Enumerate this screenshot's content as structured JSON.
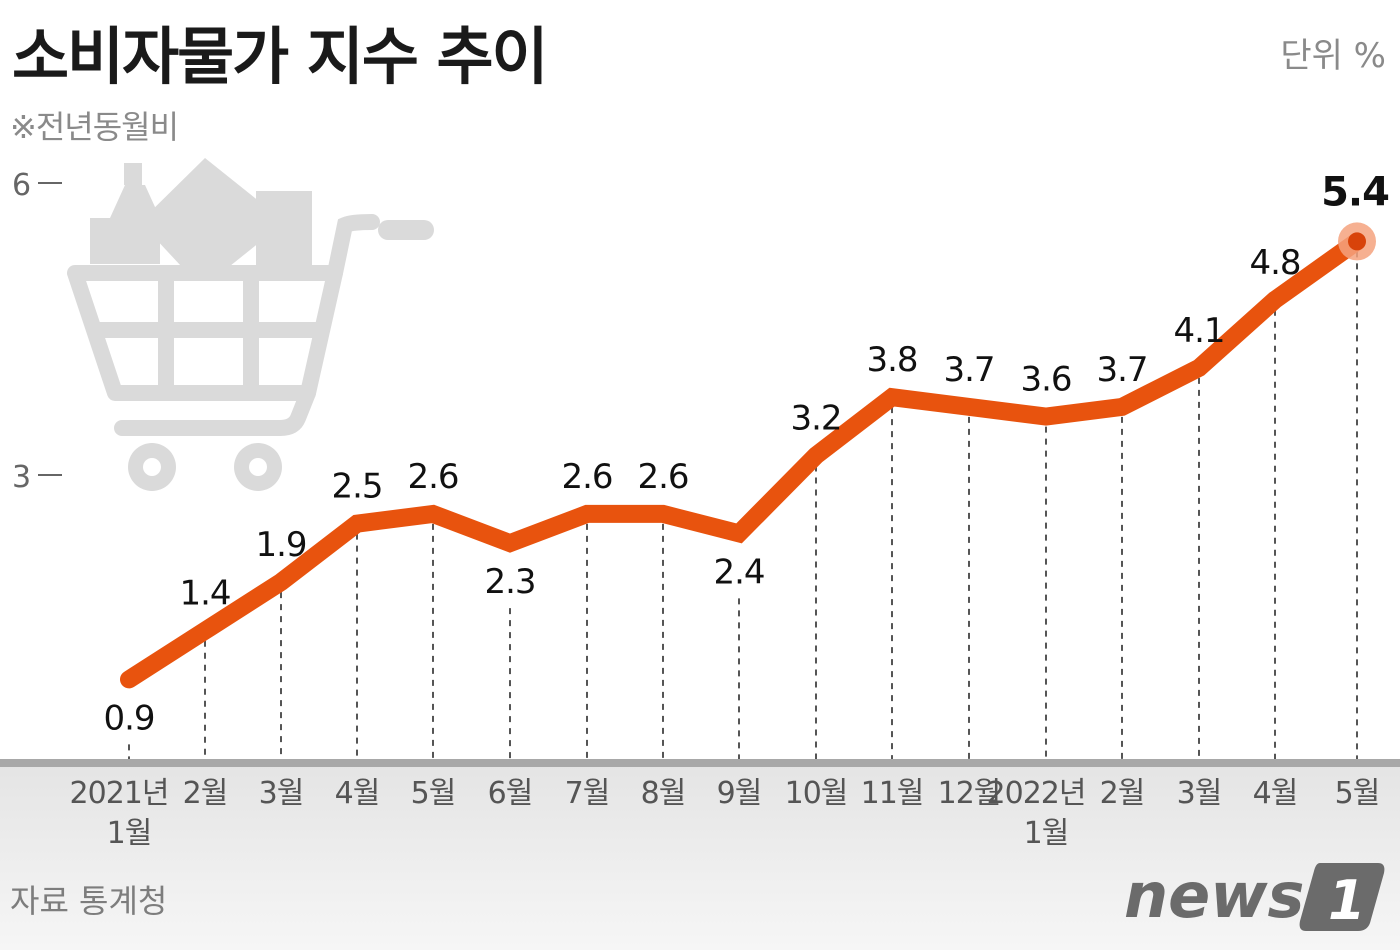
{
  "header": {
    "title": "소비자물가 지수 추이",
    "subtitle": "※전년동월비",
    "unit": "단위 %"
  },
  "footer": {
    "source": "자료 통계청",
    "logo_text": "news",
    "logo_mark": "1"
  },
  "colors": {
    "line": "#E8530E",
    "highlight": "#F4A27E",
    "axis": "#A8A8A8",
    "icon": "#DADADA"
  },
  "decor": {
    "icon": "shopping-cart-icon"
  },
  "chart_data": {
    "type": "line",
    "title": "소비자물가 지수 추이",
    "subtitle": "※전년동월비",
    "unit": "%",
    "xlabel": "",
    "ylabel": "",
    "ylim": [
      0,
      6
    ],
    "yticks": [
      "3",
      "6"
    ],
    "grid": false,
    "drop_lines": true,
    "categories": [
      [
        "2021년",
        "1월"
      ],
      [
        "2월"
      ],
      [
        "3월"
      ],
      [
        "4월"
      ],
      [
        "5월"
      ],
      [
        "6월"
      ],
      [
        "7월"
      ],
      [
        "8월"
      ],
      [
        "9월"
      ],
      [
        "10월"
      ],
      [
        "11월"
      ],
      [
        "12월"
      ],
      [
        "2022년",
        "1월"
      ],
      [
        "2월"
      ],
      [
        "3월"
      ],
      [
        "4월"
      ],
      [
        "5월"
      ]
    ],
    "series": [
      {
        "name": "소비자물가 전년동월비",
        "values": [
          0.9,
          1.4,
          1.9,
          2.5,
          2.6,
          2.3,
          2.6,
          2.6,
          2.4,
          3.2,
          3.8,
          3.7,
          3.6,
          3.7,
          4.1,
          4.8,
          5.4
        ],
        "labels": [
          "0.9",
          "1.4",
          "1.9",
          "2.5",
          "2.6",
          "2.3",
          "2.6",
          "2.6",
          "2.4",
          "3.2",
          "3.8",
          "3.7",
          "3.6",
          "3.7",
          "4.1",
          "4.8",
          "5.4"
        ],
        "label_pos": [
          "below",
          "above",
          "above",
          "above",
          "above",
          "below",
          "above",
          "above",
          "below",
          "above",
          "above",
          "above",
          "above",
          "above",
          "above",
          "above",
          "above"
        ]
      }
    ],
    "highlight_last": true
  }
}
